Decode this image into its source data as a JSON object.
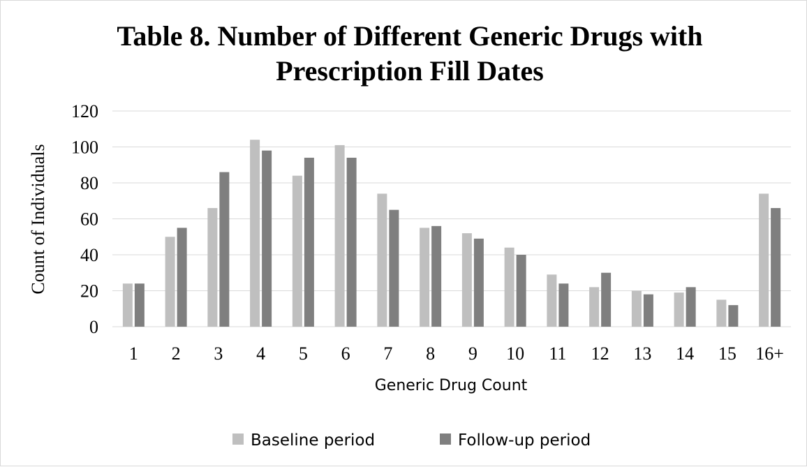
{
  "chart_data": {
    "type": "bar",
    "title_lines": [
      "Table 8. Number of Different Generic Drugs with",
      "Prescription Fill Dates"
    ],
    "xlabel": "Generic Drug Count",
    "ylabel": "Count of Individuals",
    "categories": [
      "1",
      "2",
      "3",
      "4",
      "5",
      "6",
      "7",
      "8",
      "9",
      "10",
      "11",
      "12",
      "13",
      "14",
      "15",
      "16+"
    ],
    "series": [
      {
        "name": "Baseline period",
        "color": "#bfbfbf",
        "values": [
          24,
          50,
          66,
          104,
          84,
          101,
          74,
          55,
          52,
          44,
          29,
          22,
          20,
          19,
          15,
          74
        ]
      },
      {
        "name": "Follow-up period",
        "color": "#7f7f7f",
        "values": [
          24,
          55,
          86,
          98,
          94,
          94,
          65,
          56,
          49,
          40,
          24,
          30,
          18,
          22,
          12,
          66
        ]
      }
    ],
    "ylim": [
      0,
      120
    ],
    "yticks": [
      0,
      20,
      40,
      60,
      80,
      100,
      120
    ],
    "grid": true,
    "legend_position": "bottom"
  }
}
